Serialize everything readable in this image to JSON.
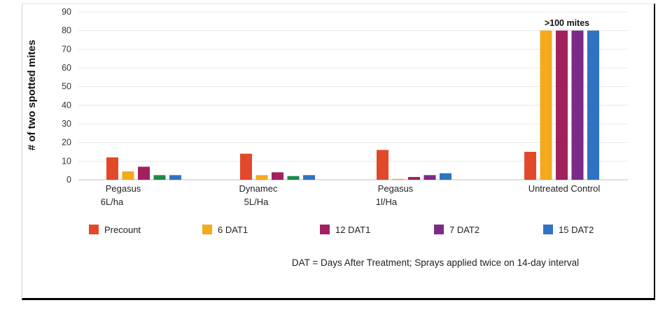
{
  "chart_data": {
    "type": "bar",
    "ylabel": "# of two spotted mites",
    "ylim": [
      0,
      90
    ],
    "yticks": [
      "0",
      "10",
      "20",
      "30",
      "40",
      "50",
      "60",
      "70",
      "80",
      "90"
    ],
    "grid": true,
    "legend_placement": "bottom",
    "categories": [
      {
        "line1": "Pegasus",
        "line2": "6L/ha"
      },
      {
        "line1": "Dynamec",
        "line2": "5L/Ha"
      },
      {
        "line1": "Pegasus",
        "line2": "1l/Ha"
      },
      {
        "line1": "Untreated Control",
        "line2": ""
      }
    ],
    "series": [
      {
        "name": "Precount",
        "color": "#e2492a",
        "values": [
          12,
          14,
          16,
          15
        ]
      },
      {
        "name": "6 DAT1",
        "color": "#f3aa1d",
        "values": [
          4.5,
          2.5,
          0.5,
          80
        ]
      },
      {
        "name": "12 DAT1",
        "color": "#a3205e",
        "values": [
          7,
          4,
          1.5,
          80
        ]
      },
      {
        "name": "7 DAT2",
        "color": "#7b2a88",
        "values": [
          2.5,
          2,
          2.5,
          80
        ]
      },
      {
        "name": "15 DAT2",
        "color": "#2f73c2",
        "values": [
          2.5,
          2.5,
          3.5,
          80
        ]
      }
    ],
    "series_overrides": [
      {
        "series": 3,
        "index": 0,
        "color": "#1e8a4a"
      },
      {
        "series": 3,
        "index": 1,
        "color": "#1e8a4a"
      }
    ],
    "annotation": ">100 mites",
    "footnote": "DAT = Days After Treatment; Sprays applied twice on 14-day interval"
  }
}
